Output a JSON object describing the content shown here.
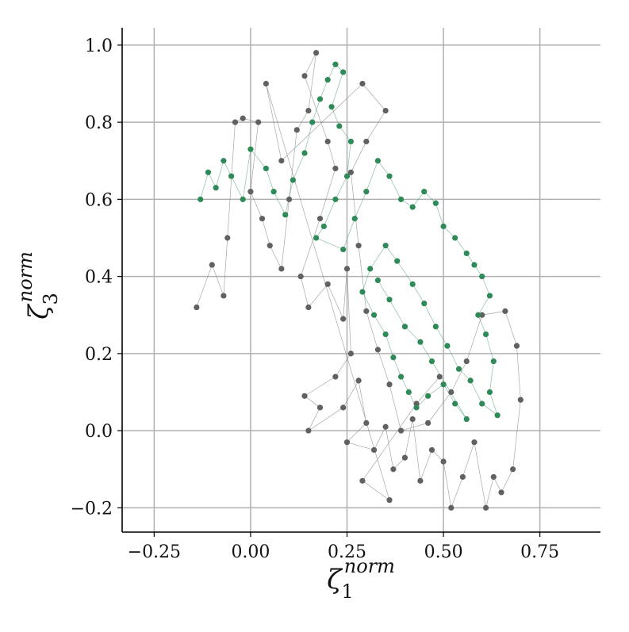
{
  "chart_data": {
    "type": "scatter",
    "xlabel": {
      "symbol": "ζ",
      "sub": "1",
      "sup": "norm"
    },
    "ylabel": {
      "symbol": "ζ",
      "sub": "3",
      "sup": "norm"
    },
    "xlim": [
      -0.333,
      0.907
    ],
    "ylim": [
      -0.263,
      1.045
    ],
    "xticks": [
      {
        "value": -0.25,
        "label": "−0.25"
      },
      {
        "value": 0,
        "label": "0.00"
      },
      0.25,
      {
        "value": 0.5,
        "label": "0.50"
      },
      0.75
    ],
    "yticks": [
      {
        "value": -0.2,
        "label": "−0.2"
      },
      {
        "value": 0,
        "label": "0.0"
      },
      0.2,
      0.4,
      0.6,
      0.8,
      {
        "value": 1,
        "label": "1.0"
      }
    ],
    "grid": true,
    "connect_points": true,
    "series": [
      {
        "color": "#616161",
        "x": [
          -0.14,
          -0.1,
          -0.07,
          -0.06,
          -0.04,
          -0.02,
          0.02,
          0.0,
          0.03,
          0.05,
          0.08,
          0.1,
          0.12,
          0.15,
          0.17,
          0.14,
          0.2,
          0.22,
          0.18,
          0.13,
          0.15,
          0.2,
          0.24,
          0.25,
          0.26,
          0.22,
          0.14,
          0.18,
          0.15,
          0.24,
          0.28,
          0.3,
          0.25,
          0.32,
          0.35,
          0.37,
          0.4,
          0.42,
          0.44,
          0.47,
          0.5,
          0.52,
          0.55,
          0.58,
          0.61,
          0.63,
          0.65,
          0.68,
          0.7,
          0.69,
          0.66,
          0.6,
          0.56,
          0.52,
          0.46,
          0.39,
          0.36,
          0.33,
          0.3,
          0.28,
          0.26,
          0.3,
          0.35,
          0.29,
          0.08,
          0.04,
          0.36,
          0.29,
          0.43,
          0.49
        ],
        "y": [
          0.32,
          0.43,
          0.35,
          0.5,
          0.8,
          0.81,
          0.8,
          0.62,
          0.55,
          0.48,
          0.42,
          0.6,
          0.78,
          0.83,
          0.98,
          0.92,
          0.75,
          0.68,
          0.55,
          0.4,
          0.32,
          0.38,
          0.29,
          0.42,
          0.2,
          0.14,
          0.09,
          0.06,
          0.0,
          0.06,
          0.13,
          0.02,
          -0.03,
          -0.05,
          0.01,
          -0.1,
          -0.07,
          0.03,
          -0.13,
          -0.05,
          -0.08,
          -0.2,
          -0.12,
          -0.03,
          -0.2,
          -0.12,
          -0.16,
          -0.1,
          0.08,
          0.22,
          0.31,
          0.3,
          0.18,
          0.1,
          0.02,
          0.0,
          0.12,
          0.21,
          0.31,
          0.48,
          0.67,
          0.75,
          0.83,
          0.9,
          0.7,
          0.9,
          -0.18,
          -0.13,
          0.07,
          0.14
        ]
      },
      {
        "color": "#2e8b57",
        "x": [
          -0.13,
          -0.11,
          -0.09,
          -0.07,
          -0.05,
          -0.02,
          0.0,
          0.04,
          0.06,
          0.09,
          0.11,
          0.14,
          0.16,
          0.18,
          0.2,
          0.22,
          0.24,
          0.21,
          0.23,
          0.26,
          0.25,
          0.22,
          0.19,
          0.17,
          0.24,
          0.27,
          0.3,
          0.33,
          0.36,
          0.39,
          0.42,
          0.45,
          0.48,
          0.5,
          0.53,
          0.56,
          0.58,
          0.6,
          0.62,
          0.59,
          0.61,
          0.63,
          0.62,
          0.64,
          0.6,
          0.57,
          0.54,
          0.51,
          0.48,
          0.45,
          0.42,
          0.38,
          0.35,
          0.31,
          0.29,
          0.32,
          0.35,
          0.37,
          0.39,
          0.41,
          0.43,
          0.46,
          0.5,
          0.53,
          0.56,
          0.47,
          0.44,
          0.4,
          0.36,
          0.33
        ],
        "y": [
          0.6,
          0.67,
          0.63,
          0.7,
          0.66,
          0.6,
          0.73,
          0.68,
          0.62,
          0.56,
          0.65,
          0.72,
          0.8,
          0.86,
          0.91,
          0.95,
          0.93,
          0.84,
          0.79,
          0.75,
          0.66,
          0.6,
          0.53,
          0.5,
          0.47,
          0.55,
          0.62,
          0.7,
          0.66,
          0.6,
          0.58,
          0.62,
          0.59,
          0.53,
          0.5,
          0.46,
          0.43,
          0.4,
          0.35,
          0.3,
          0.25,
          0.18,
          0.1,
          0.04,
          0.07,
          0.13,
          0.16,
          0.22,
          0.27,
          0.33,
          0.38,
          0.44,
          0.48,
          0.42,
          0.36,
          0.3,
          0.25,
          0.19,
          0.14,
          0.1,
          0.06,
          0.09,
          0.12,
          0.07,
          0.03,
          0.18,
          0.23,
          0.27,
          0.34,
          0.39
        ]
      }
    ]
  }
}
